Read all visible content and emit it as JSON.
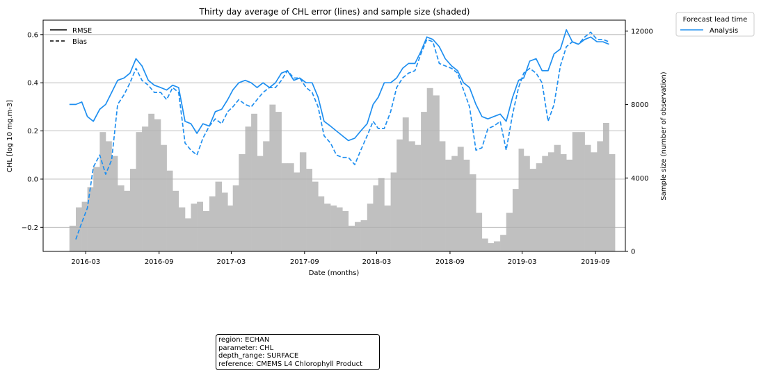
{
  "chart_data": {
    "type": "line",
    "title": "Thirty day average of CHL error (lines) and sample size (shaded)",
    "xlabel": "Date (months)",
    "ylabel": "CHL [log 10 mg.m-3]",
    "y2label": "Sample size (number of observation)",
    "xlim": [
      "2015-11-15",
      "2019-11-15"
    ],
    "ylim": [
      -0.3,
      0.66
    ],
    "y2lim": [
      0,
      12600
    ],
    "xticks": [
      "2016-03",
      "2016-09",
      "2017-03",
      "2017-09",
      "2018-03",
      "2018-09",
      "2019-03",
      "2019-09"
    ],
    "yticks": [
      "−0.2",
      "0.0",
      "0.2",
      "0.4",
      "0.6"
    ],
    "ytick_values": [
      -0.2,
      0.0,
      0.2,
      0.4,
      0.6
    ],
    "y2ticks": [
      "0",
      "4000",
      "8000",
      "12000"
    ],
    "y2tick_values": [
      0,
      4000,
      8000,
      12000
    ],
    "grid": "y",
    "style_legend": {
      "placement": "upper-left",
      "entries": [
        {
          "label": "RMSE",
          "linestyle": "solid"
        },
        {
          "label": "Bias",
          "linestyle": "dashed"
        }
      ]
    },
    "series_legend": {
      "title": "Forecast lead time",
      "placement": "outside-right",
      "entries": [
        {
          "label": "Analysis",
          "color": "#1f8ff0"
        }
      ]
    },
    "series": [
      {
        "name": "Analysis",
        "metric": "RMSE",
        "color": "#1f8ff0",
        "x": [
          "2016-01-20",
          "2016-02-05",
          "2016-02-20",
          "2016-03-05",
          "2016-03-20",
          "2016-04-05",
          "2016-04-20",
          "2016-05-05",
          "2016-05-20",
          "2016-06-05",
          "2016-06-20",
          "2016-07-05",
          "2016-07-20",
          "2016-08-05",
          "2016-08-20",
          "2016-09-05",
          "2016-09-20",
          "2016-10-05",
          "2016-10-20",
          "2016-11-05",
          "2016-11-20",
          "2016-12-05",
          "2016-12-20",
          "2017-01-05",
          "2017-01-20",
          "2017-02-05",
          "2017-02-20",
          "2017-03-05",
          "2017-03-20",
          "2017-04-05",
          "2017-04-20",
          "2017-05-05",
          "2017-05-20",
          "2017-06-05",
          "2017-06-20",
          "2017-07-05",
          "2017-07-20",
          "2017-08-05",
          "2017-08-20",
          "2017-09-05",
          "2017-09-20",
          "2017-10-05",
          "2017-10-20",
          "2017-11-05",
          "2017-11-20",
          "2017-12-05",
          "2017-12-20",
          "2018-01-05",
          "2018-01-20",
          "2018-02-05",
          "2018-02-20",
          "2018-03-05",
          "2018-03-20",
          "2018-04-05",
          "2018-04-20",
          "2018-05-05",
          "2018-05-20",
          "2018-06-05",
          "2018-06-20",
          "2018-07-05",
          "2018-07-20",
          "2018-08-05",
          "2018-08-20",
          "2018-09-05",
          "2018-09-20",
          "2018-10-05",
          "2018-10-20",
          "2018-11-05",
          "2018-11-20",
          "2018-12-05",
          "2018-12-20",
          "2019-01-05",
          "2019-01-20",
          "2019-02-05",
          "2019-02-20",
          "2019-03-05",
          "2019-03-20",
          "2019-04-05",
          "2019-04-20",
          "2019-05-05",
          "2019-05-20",
          "2019-06-05",
          "2019-06-20",
          "2019-07-05",
          "2019-07-20",
          "2019-08-05",
          "2019-08-20",
          "2019-09-05",
          "2019-09-20",
          "2019-10-05"
        ],
        "values": [
          0.31,
          0.31,
          0.32,
          0.26,
          0.24,
          0.29,
          0.31,
          0.36,
          0.41,
          0.42,
          0.44,
          0.5,
          0.47,
          0.41,
          0.39,
          0.38,
          0.37,
          0.39,
          0.38,
          0.24,
          0.23,
          0.19,
          0.23,
          0.22,
          0.28,
          0.29,
          0.33,
          0.37,
          0.4,
          0.41,
          0.4,
          0.38,
          0.4,
          0.38,
          0.4,
          0.44,
          0.45,
          0.41,
          0.42,
          0.4,
          0.4,
          0.34,
          0.24,
          0.22,
          0.2,
          0.18,
          0.16,
          0.17,
          0.2,
          0.23,
          0.31,
          0.34,
          0.4,
          0.4,
          0.42,
          0.46,
          0.48,
          0.48,
          0.53,
          0.59,
          0.58,
          0.55,
          0.5,
          0.47,
          0.45,
          0.4,
          0.38,
          0.31,
          0.26,
          0.25,
          0.26,
          0.27,
          0.24,
          0.34,
          0.41,
          0.42,
          0.49,
          0.5,
          0.45,
          0.45,
          0.52,
          0.54,
          0.62,
          0.57,
          0.56,
          0.58,
          0.59,
          0.57,
          0.57,
          0.56
        ]
      },
      {
        "name": "Analysis",
        "metric": "Bias",
        "color": "#1f8ff0",
        "x": [
          "2016-02-05",
          "2016-02-20",
          "2016-03-05",
          "2016-03-20",
          "2016-04-05",
          "2016-04-20",
          "2016-05-05",
          "2016-05-20",
          "2016-06-05",
          "2016-06-20",
          "2016-07-05",
          "2016-07-20",
          "2016-08-05",
          "2016-08-20",
          "2016-09-05",
          "2016-09-20",
          "2016-10-05",
          "2016-10-20",
          "2016-11-05",
          "2016-11-20",
          "2016-12-05",
          "2016-12-20",
          "2017-01-05",
          "2017-01-20",
          "2017-02-05",
          "2017-02-20",
          "2017-03-05",
          "2017-03-20",
          "2017-04-05",
          "2017-04-20",
          "2017-05-05",
          "2017-05-20",
          "2017-06-05",
          "2017-06-20",
          "2017-07-05",
          "2017-07-20",
          "2017-08-05",
          "2017-08-20",
          "2017-09-05",
          "2017-09-20",
          "2017-10-05",
          "2017-10-20",
          "2017-11-05",
          "2017-11-20",
          "2017-12-05",
          "2017-12-20",
          "2018-01-05",
          "2018-01-20",
          "2018-02-05",
          "2018-02-20",
          "2018-03-05",
          "2018-03-20",
          "2018-04-05",
          "2018-04-20",
          "2018-05-05",
          "2018-05-20",
          "2018-06-05",
          "2018-06-20",
          "2018-07-05",
          "2018-07-20",
          "2018-08-05",
          "2018-08-20",
          "2018-09-05",
          "2018-09-20",
          "2018-10-05",
          "2018-10-20",
          "2018-11-05",
          "2018-11-20",
          "2018-12-05",
          "2018-12-20",
          "2019-01-05",
          "2019-01-20",
          "2019-02-05",
          "2019-02-20",
          "2019-03-05",
          "2019-03-20",
          "2019-04-05",
          "2019-04-20",
          "2019-05-05",
          "2019-05-20",
          "2019-06-05",
          "2019-06-20",
          "2019-07-05",
          "2019-07-20",
          "2019-08-05",
          "2019-08-20",
          "2019-09-05",
          "2019-09-20",
          "2019-10-05"
        ],
        "values": [
          -0.25,
          -0.18,
          -0.12,
          0.05,
          0.1,
          0.02,
          0.08,
          0.31,
          0.35,
          0.4,
          0.46,
          0.41,
          0.39,
          0.36,
          0.36,
          0.33,
          0.38,
          0.36,
          0.15,
          0.12,
          0.1,
          0.17,
          0.22,
          0.25,
          0.23,
          0.28,
          0.3,
          0.33,
          0.31,
          0.3,
          0.33,
          0.36,
          0.38,
          0.38,
          0.41,
          0.45,
          0.42,
          0.42,
          0.38,
          0.36,
          0.3,
          0.18,
          0.15,
          0.1,
          0.09,
          0.09,
          0.06,
          0.12,
          0.18,
          0.24,
          0.21,
          0.21,
          0.28,
          0.38,
          0.42,
          0.44,
          0.45,
          0.52,
          0.58,
          0.57,
          0.48,
          0.47,
          0.46,
          0.44,
          0.37,
          0.3,
          0.12,
          0.13,
          0.21,
          0.22,
          0.24,
          0.12,
          0.27,
          0.38,
          0.44,
          0.46,
          0.44,
          0.4,
          0.24,
          0.31,
          0.47,
          0.55,
          0.57,
          0.56,
          0.59,
          0.61,
          0.58,
          0.58,
          0.57
        ]
      },
      {
        "name": "Sample size",
        "type": "bar",
        "axis": "right",
        "color": "#c0c0c0",
        "x": [
          "2016-01-20",
          "2016-02-05",
          "2016-02-20",
          "2016-03-05",
          "2016-03-20",
          "2016-04-05",
          "2016-04-20",
          "2016-05-05",
          "2016-05-20",
          "2016-06-05",
          "2016-06-20",
          "2016-07-05",
          "2016-07-20",
          "2016-08-05",
          "2016-08-20",
          "2016-09-05",
          "2016-09-20",
          "2016-10-05",
          "2016-10-20",
          "2016-11-05",
          "2016-11-20",
          "2016-12-05",
          "2016-12-20",
          "2017-01-05",
          "2017-01-20",
          "2017-02-05",
          "2017-02-20",
          "2017-03-05",
          "2017-03-20",
          "2017-04-05",
          "2017-04-20",
          "2017-05-05",
          "2017-05-20",
          "2017-06-05",
          "2017-06-20",
          "2017-07-05",
          "2017-07-20",
          "2017-08-05",
          "2017-08-20",
          "2017-09-05",
          "2017-09-20",
          "2017-10-05",
          "2017-10-20",
          "2017-11-05",
          "2017-11-20",
          "2017-12-05",
          "2017-12-20",
          "2018-01-05",
          "2018-01-20",
          "2018-02-05",
          "2018-02-20",
          "2018-03-05",
          "2018-03-20",
          "2018-04-05",
          "2018-04-20",
          "2018-05-05",
          "2018-05-20",
          "2018-06-05",
          "2018-06-20",
          "2018-07-05",
          "2018-07-20",
          "2018-08-05",
          "2018-08-20",
          "2018-09-05",
          "2018-09-20",
          "2018-10-05",
          "2018-10-20",
          "2018-11-05",
          "2018-11-20",
          "2018-12-05",
          "2018-12-20",
          "2019-01-05",
          "2019-01-20",
          "2019-02-05",
          "2019-02-20",
          "2019-03-05",
          "2019-03-20",
          "2019-04-05",
          "2019-04-20",
          "2019-05-05",
          "2019-05-20",
          "2019-06-05",
          "2019-06-20",
          "2019-07-05",
          "2019-07-20",
          "2019-08-05",
          "2019-08-20",
          "2019-09-05",
          "2019-09-20",
          "2019-10-05"
        ],
        "values": [
          1400,
          2400,
          2700,
          3500,
          4600,
          6500,
          6000,
          5200,
          3600,
          3300,
          4500,
          6500,
          6800,
          7500,
          7200,
          5800,
          4400,
          3300,
          2400,
          1800,
          2600,
          2700,
          2200,
          3000,
          3800,
          3200,
          2500,
          3600,
          5300,
          6800,
          7500,
          5200,
          6000,
          8000,
          7600,
          4800,
          4800,
          4300,
          5400,
          4500,
          3800,
          3000,
          2600,
          2500,
          2400,
          2200,
          1400,
          1600,
          1700,
          2600,
          3600,
          4000,
          2500,
          4300,
          6100,
          7300,
          6000,
          5800,
          7600,
          8900,
          8500,
          6000,
          5000,
          5200,
          5700,
          5000,
          4200,
          2100,
          700,
          450,
          550,
          900,
          2100,
          3400,
          5600,
          5200,
          4500,
          4800,
          5200,
          5400,
          5800,
          5300,
          5000,
          6500,
          6500,
          5800,
          5400,
          6000,
          7000,
          5300
        ]
      }
    ],
    "annotation": {
      "placement": "below-chart",
      "lines": [
        "region: ECHAN",
        "parameter: CHL",
        "depth_range: SURFACE",
        "reference: CMEMS L4 Chlorophyll Product"
      ]
    }
  }
}
